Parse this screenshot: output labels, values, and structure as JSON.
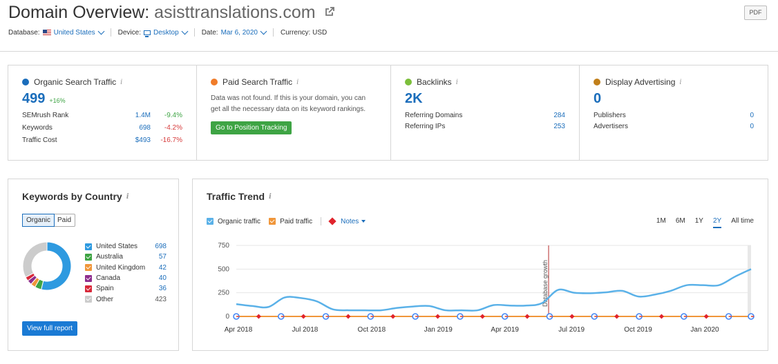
{
  "header": {
    "title_prefix": "Domain Overview: ",
    "domain": "asisttranslations.com",
    "pdf_label": "PDF",
    "database_label": "Database:",
    "database_value": "United States",
    "device_label": "Device:",
    "device_value": "Desktop",
    "date_label": "Date:",
    "date_value": "Mar 6, 2020",
    "currency_label": "Currency: USD"
  },
  "organic": {
    "title": "Organic Search Traffic",
    "value": "499",
    "delta": "+16%",
    "color": "#1a6dbb",
    "rows": [
      {
        "label": "SEMrush Rank",
        "value": "1.4M",
        "change": "-9.4%",
        "trend": "pos"
      },
      {
        "label": "Keywords",
        "value": "698",
        "change": "-4.2%",
        "trend": "neg"
      },
      {
        "label": "Traffic Cost",
        "value": "$493",
        "change": "-16.7%",
        "trend": "neg"
      }
    ]
  },
  "paid": {
    "title": "Paid Search Traffic",
    "color": "#f07c2a",
    "message": "Data was not found. If this is your domain, you can get all the necessary data on its keyword rankings.",
    "button": "Go to Position Tracking"
  },
  "backlinks": {
    "title": "Backlinks",
    "value": "2K",
    "color": "#7cbf3b",
    "rows": [
      {
        "label": "Referring Domains",
        "value": "284"
      },
      {
        "label": "Referring IPs",
        "value": "253"
      }
    ]
  },
  "display": {
    "title": "Display Advertising",
    "value": "0",
    "color": "#c17f1a",
    "rows": [
      {
        "label": "Publishers",
        "value": "0"
      },
      {
        "label": "Advertisers",
        "value": "0"
      }
    ]
  },
  "keywords_by_country": {
    "title": "Keywords by Country",
    "tabs": [
      "Organic",
      "Paid"
    ],
    "active_tab": "Organic",
    "countries": [
      {
        "name": "United States",
        "value": "698",
        "color": "#2e9ae0"
      },
      {
        "name": "Australia",
        "value": "57",
        "color": "#3ea444"
      },
      {
        "name": "United Kingdom",
        "value": "42",
        "color": "#f0963a"
      },
      {
        "name": "Canada",
        "value": "40",
        "color": "#8e2e8e"
      },
      {
        "name": "Spain",
        "value": "36",
        "color": "#d8293a"
      },
      {
        "name": "Other",
        "value": "423",
        "color": "#cccccc"
      }
    ],
    "button": "View full report"
  },
  "traffic_trend": {
    "title": "Traffic Trend",
    "legend": {
      "organic": "Organic traffic",
      "paid": "Paid traffic",
      "notes": "Notes"
    },
    "colors": {
      "organic": "#5ab1e8",
      "paid": "#f0963a"
    },
    "ranges": [
      "1M",
      "6M",
      "1Y",
      "2Y",
      "All time"
    ],
    "active_range": "2Y",
    "annotation": "Database growth"
  },
  "chart_data": {
    "type": "line",
    "x_labels": [
      "Apr 2018",
      "Jul 2018",
      "Oct 2018",
      "Jan 2019",
      "Apr 2019",
      "Jul 2019",
      "Oct 2019",
      "Jan 2020"
    ],
    "y_ticks": [
      "0",
      "250",
      "500",
      "750"
    ],
    "ylim": [
      0,
      750
    ],
    "series": [
      {
        "name": "Organic traffic",
        "values": [
          130,
          110,
          100,
          200,
          195,
          160,
          75,
          65,
          65,
          65,
          90,
          105,
          110,
          65,
          65,
          65,
          120,
          115,
          115,
          140,
          280,
          250,
          245,
          255,
          270,
          210,
          230,
          270,
          330,
          330,
          330,
          420,
          500
        ]
      },
      {
        "name": "Paid traffic",
        "values": [
          0,
          0,
          0,
          0,
          0,
          0,
          0,
          0,
          0,
          0,
          0,
          0,
          0,
          0,
          0,
          0,
          0,
          0,
          0,
          0,
          0,
          0,
          0,
          0,
          0,
          0,
          0,
          0,
          0,
          0,
          0,
          0,
          0
        ]
      }
    ]
  }
}
